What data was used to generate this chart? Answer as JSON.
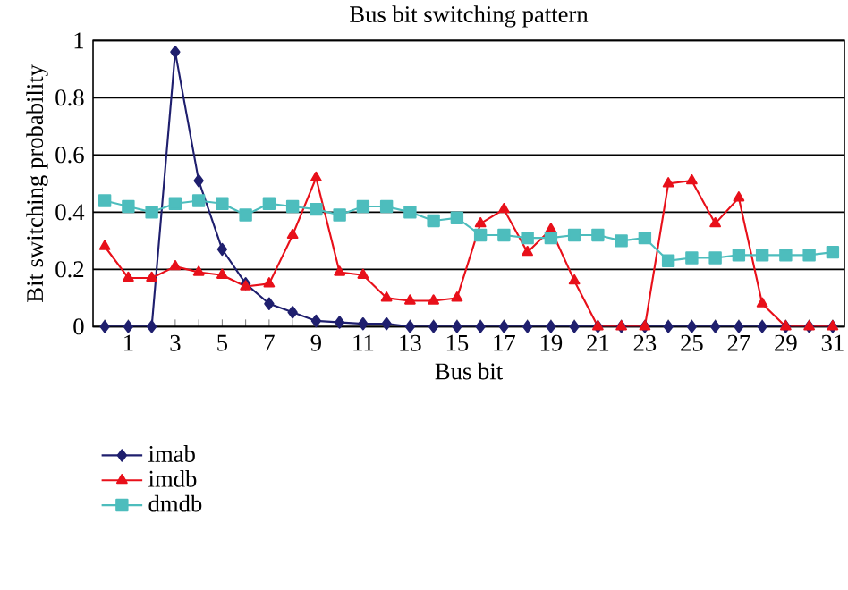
{
  "chart_data": {
    "type": "line",
    "title": "Bus bit switching pattern",
    "xlabel": "Bus bit",
    "ylabel": "Bit switching probability",
    "categories": [
      null,
      "1",
      null,
      "3",
      null,
      "5",
      null,
      "7",
      null,
      "9",
      null,
      "11",
      null,
      "13",
      null,
      "15",
      null,
      "17",
      null,
      "19",
      null,
      "21",
      null,
      "23",
      null,
      "25",
      null,
      "27",
      null,
      "29",
      null,
      "31"
    ],
    "ylim": [
      0,
      1
    ],
    "yticks": [
      0,
      0.2,
      0.4,
      0.6,
      0.8,
      1
    ],
    "grid": "y",
    "legend": "bottom left",
    "line_style": "solid",
    "series": [
      {
        "name": "imab",
        "color": "#1f1f6e",
        "marker": "diamond",
        "values": [
          0,
          0,
          0,
          0.96,
          0.51,
          0.27,
          0.15,
          0.08,
          0.05,
          0.02,
          0.015,
          0.01,
          0.01,
          0,
          0,
          0,
          0,
          0,
          0,
          0,
          0,
          0,
          0,
          0,
          0,
          0,
          0,
          0,
          0,
          0,
          0,
          0
        ]
      },
      {
        "name": "imdb",
        "color": "#e8101a",
        "marker": "triangle",
        "values": [
          0.28,
          0.17,
          0.17,
          0.21,
          0.19,
          0.18,
          0.14,
          0.15,
          0.32,
          0.52,
          0.19,
          0.18,
          0.1,
          0.09,
          0.09,
          0.1,
          0.36,
          0.41,
          0.26,
          0.34,
          0.16,
          0,
          0,
          0,
          0.5,
          0.51,
          0.36,
          0.45,
          0.08,
          0,
          0,
          0
        ]
      },
      {
        "name": "dmdb",
        "color": "#4dbdbd",
        "marker": "square",
        "values": [
          0.44,
          0.42,
          0.4,
          0.43,
          0.44,
          0.43,
          0.39,
          0.43,
          0.42,
          0.41,
          0.39,
          0.42,
          0.42,
          0.4,
          0.37,
          0.38,
          0.32,
          0.32,
          0.31,
          0.31,
          0.32,
          0.32,
          0.3,
          0.31,
          0.23,
          0.24,
          0.24,
          0.25,
          0.25,
          0.25,
          0.25,
          0.26
        ]
      }
    ]
  }
}
